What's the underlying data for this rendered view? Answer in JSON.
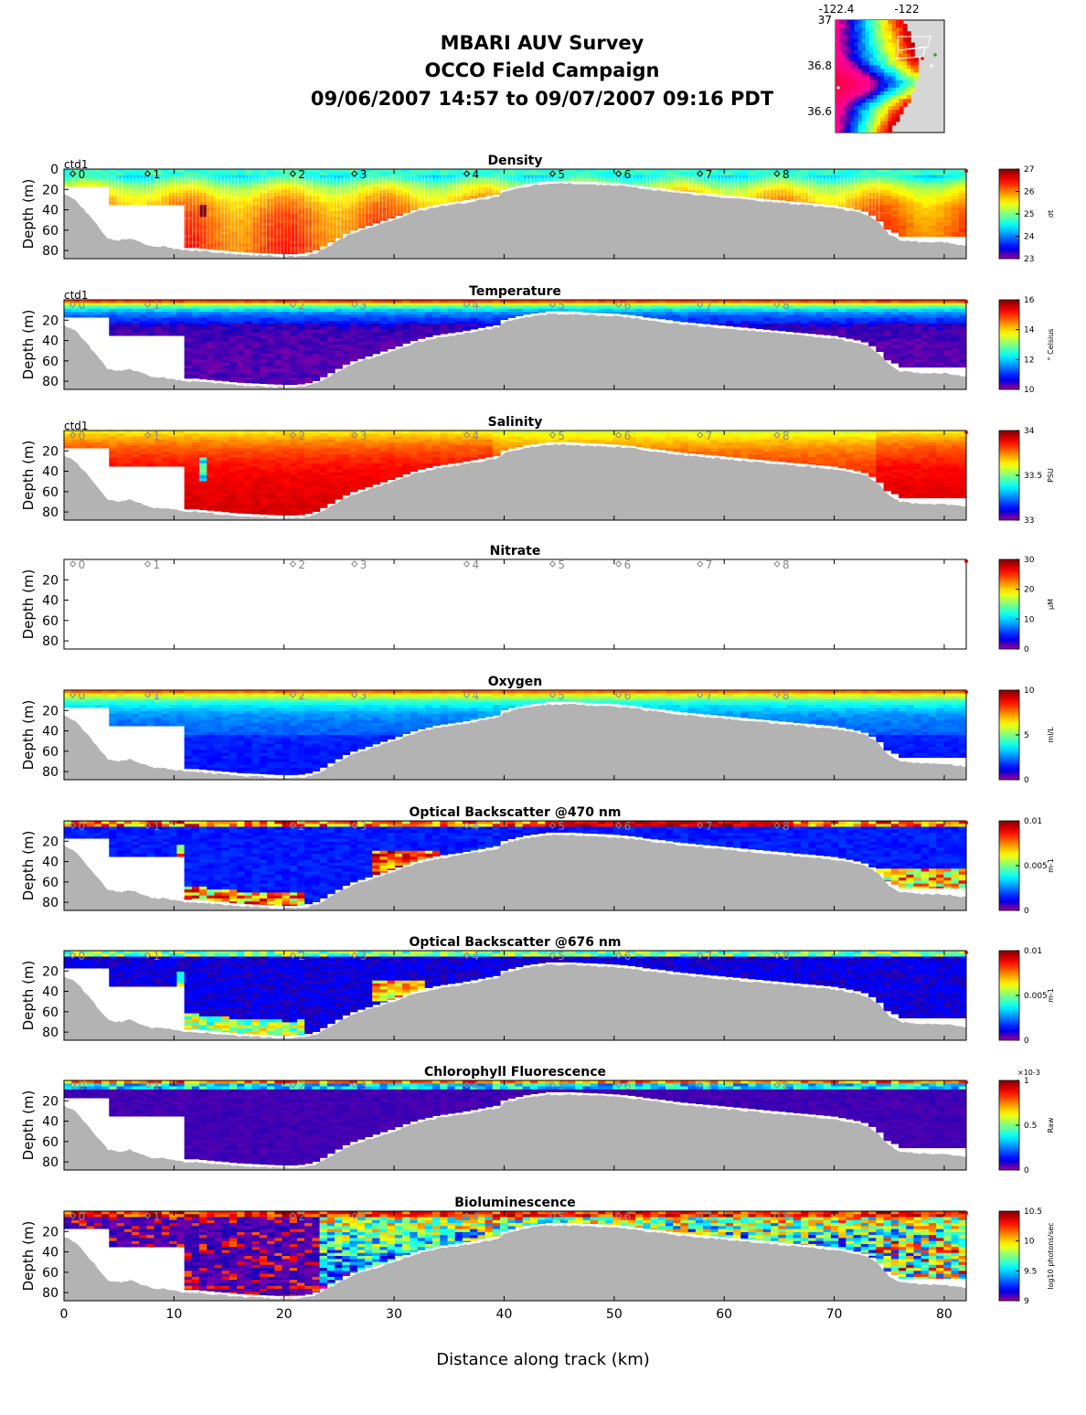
{
  "title_lines": [
    "MBARI AUV Survey",
    "OCCO Field Campaign",
    "09/06/2007 14:57  to 09/07/2007 09:16 PDT"
  ],
  "xlabel": "Distance along track (km)",
  "ylabel": "Depth (m)",
  "inset_map": {
    "lon_ticks": [
      "-122.4",
      "-122"
    ],
    "lat_ticks": [
      "37",
      "36.8",
      "36.6"
    ]
  },
  "chart_data": {
    "type": "heatmap",
    "x_range_km": [
      0,
      82
    ],
    "x_ticks": [
      "0",
      "10",
      "20",
      "30",
      "40",
      "50",
      "60",
      "70",
      "80"
    ],
    "depth_range_m": [
      0,
      88
    ],
    "stations": [
      {
        "label": "0",
        "km": 0.8
      },
      {
        "label": "1",
        "km": 7.6
      },
      {
        "label": "2",
        "km": 20.8
      },
      {
        "label": "3",
        "km": 26.4
      },
      {
        "label": "4",
        "km": 36.6
      },
      {
        "label": "5",
        "km": 44.4
      },
      {
        "label": "6",
        "km": 50.4
      },
      {
        "label": "7",
        "km": 57.8
      },
      {
        "label": "8",
        "km": 64.8
      }
    ],
    "seafloor_profile": {
      "km": [
        0,
        1,
        2,
        3,
        4,
        5,
        6,
        7,
        8,
        9,
        10,
        11,
        12,
        14,
        16,
        18,
        20,
        21,
        22,
        23,
        24,
        26,
        28,
        30,
        32,
        34,
        36,
        38,
        39.5,
        40,
        42,
        44,
        46,
        48,
        50,
        52,
        53,
        54,
        56,
        58,
        60,
        62,
        64,
        66,
        68,
        70,
        72,
        73,
        74,
        75,
        76,
        78,
        80,
        81,
        82
      ],
      "depth_m": [
        25,
        30,
        42,
        55,
        68,
        70,
        68,
        72,
        76,
        76,
        78,
        80,
        80,
        82,
        84,
        85,
        86,
        86,
        85,
        82,
        76,
        64,
        57,
        50,
        42,
        37,
        34,
        30,
        27,
        22,
        17,
        14,
        14,
        15,
        16,
        18,
        20,
        21,
        24,
        26,
        28,
        30,
        32,
        34,
        36,
        38,
        42,
        45,
        52,
        64,
        70,
        72,
        72,
        74,
        75
      ]
    },
    "panels": [
      {
        "title": "Density",
        "cb_ticks": [
          "27",
          "26",
          "25",
          "24",
          "23"
        ],
        "cb_label": "σt",
        "y_ticks": [
          "0",
          "20",
          "40",
          "60",
          "80"
        ],
        "field": "density",
        "ctd_label": "ctd1"
      },
      {
        "title": "Temperature",
        "cb_ticks": [
          "16",
          "14",
          "12",
          "10"
        ],
        "cb_label": "° Celsius",
        "y_ticks": [
          "20",
          "40",
          "60",
          "80"
        ],
        "field": "temperature",
        "ctd_label": "ctd1"
      },
      {
        "title": "Salinity",
        "cb_ticks": [
          "34",
          "33.5",
          "33"
        ],
        "cb_label": "PSU",
        "y_ticks": [
          "20",
          "40",
          "60",
          "80"
        ],
        "field": "salinity",
        "ctd_label": "ctd1"
      },
      {
        "title": "Nitrate",
        "cb_ticks": [
          "30",
          "20",
          "10",
          "0"
        ],
        "cb_label": "μM",
        "y_ticks": [
          "20",
          "40",
          "60",
          "80"
        ],
        "field": "none",
        "ctd_label": ""
      },
      {
        "title": "Oxygen",
        "cb_ticks": [
          "10",
          "5",
          "0"
        ],
        "cb_label": "ml/L",
        "y_ticks": [
          "20",
          "40",
          "60",
          "80"
        ],
        "field": "oxygen",
        "ctd_label": ""
      },
      {
        "title": "Optical Backscatter @470 nm",
        "cb_ticks": [
          "0.01",
          "0.005",
          "0"
        ],
        "cb_label": "m-1",
        "y_ticks": [
          "20",
          "40",
          "60",
          "80"
        ],
        "field": "bb470",
        "ctd_label": ""
      },
      {
        "title": "Optical Backscatter @676 nm",
        "cb_ticks": [
          "0.01",
          "0.005",
          "0"
        ],
        "cb_label": "m-1",
        "y_ticks": [
          "20",
          "40",
          "60",
          "80"
        ],
        "field": "bb676",
        "ctd_label": ""
      },
      {
        "title": "Chlorophyll Fluorescence",
        "cb_ticks": [
          "1",
          "0.5",
          "0"
        ],
        "cb_label": "Raw",
        "cb_exponent": "×10-3",
        "y_ticks": [
          "20",
          "40",
          "60",
          "80"
        ],
        "field": "chl",
        "ctd_label": ""
      },
      {
        "title": "Bioluminescence",
        "cb_ticks": [
          "10.5",
          "10",
          "9.5",
          "9"
        ],
        "cb_label": "log10 photons/sec",
        "y_ticks": [
          "20",
          "40",
          "60",
          "80"
        ],
        "field": "biolum",
        "ctd_label": ""
      }
    ]
  }
}
